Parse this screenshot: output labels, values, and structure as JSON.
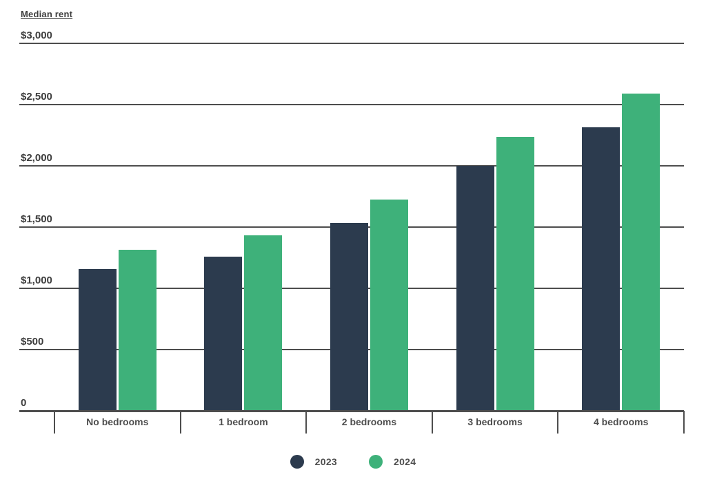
{
  "chart_data": {
    "type": "bar",
    "title": "Median rent",
    "categories": [
      "No bedrooms",
      "1 bedroom",
      "2 bedrooms",
      "3 bedrooms",
      "4 bedrooms"
    ],
    "series": [
      {
        "name": "2023",
        "color": "#2c3b4e",
        "values": [
          1160,
          1260,
          1535,
          2000,
          2315
        ]
      },
      {
        "name": "2024",
        "color": "#3eb17a",
        "values": [
          1315,
          1435,
          1725,
          2235,
          2590
        ]
      }
    ],
    "xlabel": "",
    "ylabel": "Median rent",
    "ylim": [
      0,
      3000
    ],
    "yticks": [
      {
        "value": 3000,
        "label": "$3,000"
      },
      {
        "value": 2500,
        "label": "$2,500"
      },
      {
        "value": 2000,
        "label": "$2,000"
      },
      {
        "value": 1500,
        "label": "$1,500"
      },
      {
        "value": 1000,
        "label": "$1,000"
      },
      {
        "value": 500,
        "label": "$500"
      },
      {
        "value": 0,
        "label": "0"
      }
    ],
    "grid": "horizontal",
    "legend_position": "bottom",
    "colors": {
      "grid": "#4d4d4d",
      "axis": "#4d4d4d",
      "text": "#3d3d3d",
      "background": "#ffffff"
    }
  }
}
